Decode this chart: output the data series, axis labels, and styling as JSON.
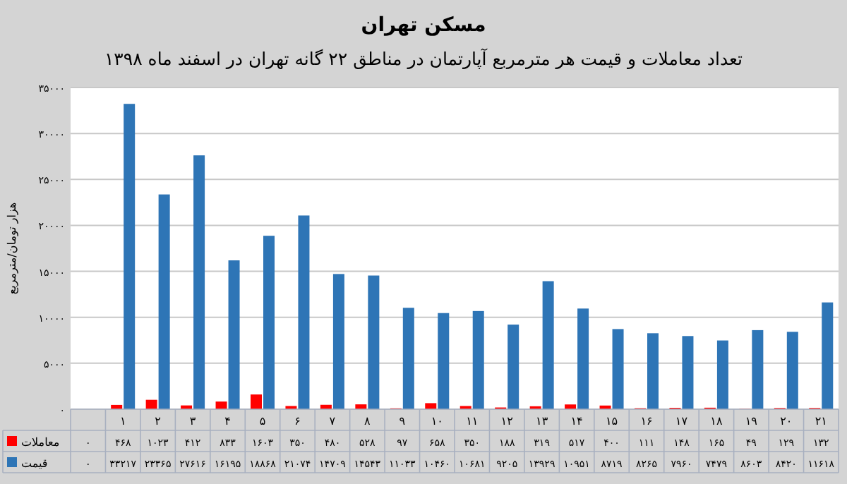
{
  "chart_data": {
    "type": "bar",
    "title": "مسکن تهران",
    "subtitle": "تعداد معاملات و قیمت هر مترمربع آپارتمان در مناطق ۲۲ گانه تهران در اسفند ماه ۱۳۹۸",
    "ylabel": "هزار تومان/مترمربع",
    "categories": [
      null,
      "۱",
      "۲",
      "۳",
      "۴",
      "۵",
      "۶",
      "۷",
      "۸",
      "۹",
      "۱۰",
      "۱۱",
      "۱۲",
      "۱۳",
      "۱۴",
      "۱۵",
      "۱۶",
      "۱۷",
      "۱۸",
      "۱۹",
      "۲۰",
      "۲۱"
    ],
    "series": [
      {
        "name": "معاملات",
        "color": "#ff0000",
        "values": [
          0,
          468,
          1023,
          412,
          833,
          1603,
          350,
          480,
          528,
          97,
          658,
          350,
          188,
          319,
          517,
          400,
          111,
          148,
          165,
          49,
          129,
          132
        ],
        "value_labels": [
          "۰",
          "۴۶۸",
          "۱۰۲۳",
          "۴۱۲",
          "۸۳۳",
          "۱۶۰۳",
          "۳۵۰",
          "۴۸۰",
          "۵۲۸",
          "۹۷",
          "۶۵۸",
          "۳۵۰",
          "۱۸۸",
          "۳۱۹",
          "۵۱۷",
          "۴۰۰",
          "۱۱۱",
          "۱۴۸",
          "۱۶۵",
          "۴۹",
          "۱۲۹",
          "۱۳۲"
        ]
      },
      {
        "name": "قیمت",
        "color": "#2e75b6",
        "values": [
          0,
          33217,
          23365,
          27616,
          16195,
          18868,
          21074,
          14709,
          14543,
          11033,
          10460,
          10681,
          9205,
          13929,
          10951,
          8719,
          8265,
          7960,
          7479,
          8603,
          8420,
          11618
        ],
        "value_labels": [
          "۰",
          "۳۳۲۱۷",
          "۲۳۳۶۵",
          "۲۷۶۱۶",
          "۱۶۱۹۵",
          "۱۸۸۶۸",
          "۲۱۰۷۴",
          "۱۴۷۰۹",
          "۱۴۵۴۳",
          "۱۱۰۳۳",
          "۱۰۴۶۰",
          "۱۰۶۸۱",
          "۹۲۰۵",
          "۱۳۹۲۹",
          "۱۰۹۵۱",
          "۸۷۱۹",
          "۸۲۶۵",
          "۷۹۶۰",
          "۷۴۷۹",
          "۸۶۰۳",
          "۸۴۲۰",
          "۱۱۶۱۸"
        ]
      }
    ],
    "ylim": [
      0,
      35000
    ],
    "yticks": [
      {
        "value": 0,
        "label": "۰"
      },
      {
        "value": 5000,
        "label": "۵۰۰۰"
      },
      {
        "value": 10000,
        "label": "۱۰۰۰۰"
      },
      {
        "value": 15000,
        "label": "۱۵۰۰۰"
      },
      {
        "value": 20000,
        "label": "۲۰۰۰۰"
      },
      {
        "value": 25000,
        "label": "۲۵۰۰۰"
      },
      {
        "value": 30000,
        "label": "۳۰۰۰۰"
      },
      {
        "value": 35000,
        "label": "۳۵۰۰۰"
      }
    ],
    "grid": "y",
    "legend": "bottom"
  }
}
